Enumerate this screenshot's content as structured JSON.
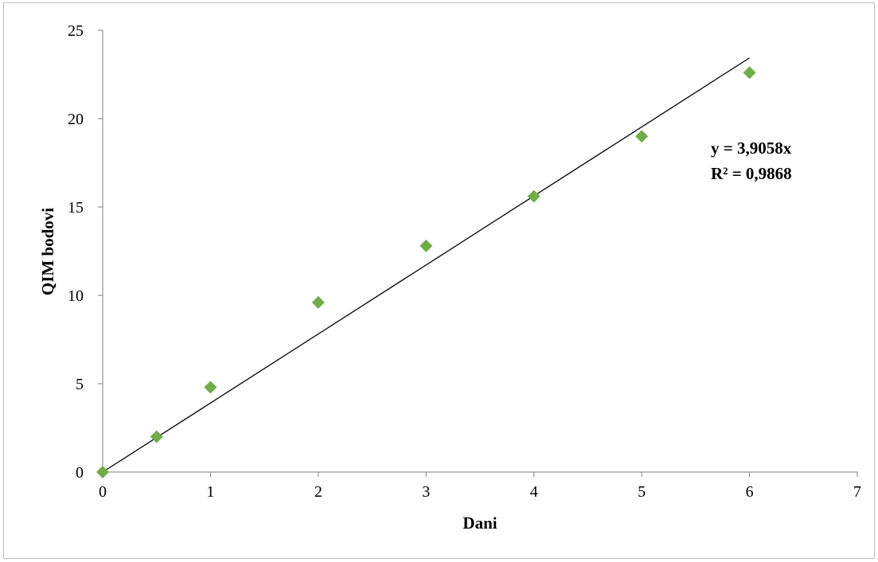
{
  "chart_data": {
    "type": "scatter",
    "xlabel": "Dani",
    "ylabel": "QIM bodovi",
    "xlim": [
      0,
      7
    ],
    "ylim": [
      0,
      25
    ],
    "x_ticks": [
      "0",
      "1",
      "2",
      "3",
      "4",
      "5",
      "6",
      "7"
    ],
    "y_ticks": [
      "0",
      "5",
      "10",
      "15",
      "20",
      "25"
    ],
    "grid": false,
    "legend": "none",
    "series": [
      {
        "marker": "diamond",
        "color": "#70ad47",
        "points": [
          {
            "x": 0,
            "y": 0
          },
          {
            "x": 0.5,
            "y": 2
          },
          {
            "x": 1,
            "y": 4.8
          },
          {
            "x": 2,
            "y": 9.6
          },
          {
            "x": 3,
            "y": 12.8
          },
          {
            "x": 4,
            "y": 15.6
          },
          {
            "x": 5,
            "y": 19
          },
          {
            "x": 6,
            "y": 22.6
          }
        ]
      }
    ],
    "trendline": {
      "type": "linear",
      "slope": 3.9058,
      "intercept": 0,
      "x_range": [
        0,
        6
      ],
      "color": "#000000",
      "equation": "y = 3,9058x",
      "r_squared": "R² = 0,9868"
    }
  }
}
